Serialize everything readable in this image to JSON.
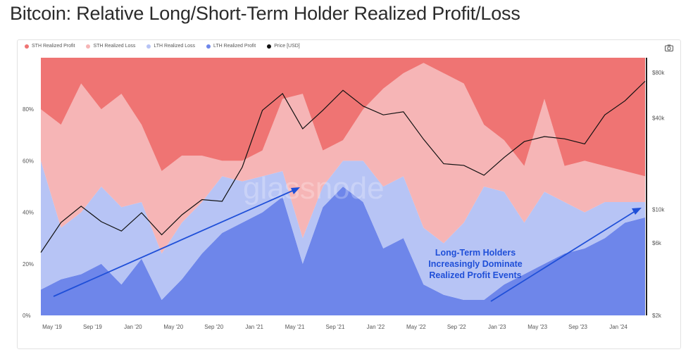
{
  "page": {
    "title": "Bitcoin: Relative Long/Short-Term Holder Realized Profit/Loss",
    "watermark": "glassnode"
  },
  "legend": [
    {
      "label": "STH Realized Profit",
      "color": "#ef7473"
    },
    {
      "label": "STH Realized Loss",
      "color": "#f6b5b6"
    },
    {
      "label": "LTH Realized Loss",
      "color": "#b7c4f5"
    },
    {
      "label": "LTH Realized Profit",
      "color": "#6e86ea"
    },
    {
      "label": "Price [USD]",
      "color": "#111111"
    }
  ],
  "icons": {
    "camera": "camera-icon"
  },
  "annotation": {
    "lines": [
      "Long-Term Holders",
      "Increasingly Dominate",
      "Realized Profit Events"
    ],
    "color": "#1f4fd8"
  },
  "chart_data": {
    "type": "area",
    "title": "Bitcoin: Relative Long/Short-Term Holder Realized Profit/Loss",
    "x_ticks": [
      "May '19",
      "Sep '19",
      "Jan '20",
      "May '20",
      "Sep '20",
      "Jan '21",
      "May '21",
      "Sep '21",
      "Jan '22",
      "May '22",
      "Sep '22",
      "Jan '23",
      "May '23",
      "Sep '23",
      "Jan '24"
    ],
    "y_left": {
      "ticks": [
        "0%",
        "20%",
        "40%",
        "60%",
        "80%"
      ],
      "range": [
        0,
        100
      ],
      "unit": "%"
    },
    "y_right": {
      "ticks": [
        "$2k",
        "$6k",
        "$10k",
        "$40k",
        "$80k"
      ],
      "scale": "log",
      "range": [
        2000,
        100000
      ]
    },
    "x": [
      "2019-04",
      "2019-06",
      "2019-08",
      "2019-10",
      "2019-12",
      "2020-02",
      "2020-04",
      "2020-06",
      "2020-08",
      "2020-10",
      "2020-12",
      "2021-02",
      "2021-04",
      "2021-06",
      "2021-08",
      "2021-10",
      "2021-12",
      "2022-02",
      "2022-04",
      "2022-06",
      "2022-08",
      "2022-10",
      "2022-12",
      "2023-02",
      "2023-04",
      "2023-06",
      "2023-08",
      "2023-10",
      "2023-12",
      "2024-02",
      "2024-03"
    ],
    "series": [
      {
        "name": "LTH Realized Profit",
        "color": "#6e86ea",
        "values": [
          10,
          14,
          16,
          20,
          12,
          22,
          6,
          14,
          24,
          32,
          36,
          40,
          46,
          20,
          42,
          50,
          44,
          26,
          30,
          12,
          8,
          6,
          6,
          12,
          16,
          20,
          24,
          26,
          30,
          36,
          38
        ]
      },
      {
        "name": "LTH Realized Loss",
        "color": "#b7c4f5",
        "values": [
          50,
          20,
          24,
          30,
          30,
          22,
          18,
          22,
          20,
          22,
          16,
          14,
          10,
          10,
          8,
          10,
          16,
          24,
          24,
          22,
          20,
          30,
          44,
          36,
          20,
          28,
          20,
          14,
          14,
          8,
          6
        ]
      },
      {
        "name": "STH Realized Loss",
        "color": "#f6b5b6",
        "values": [
          20,
          40,
          50,
          30,
          44,
          30,
          32,
          26,
          18,
          6,
          8,
          10,
          28,
          56,
          14,
          8,
          20,
          38,
          40,
          64,
          66,
          54,
          24,
          20,
          22,
          36,
          14,
          20,
          14,
          12,
          10
        ]
      },
      {
        "name": "STH Realized Profit",
        "color": "#ef7473",
        "values": [
          20,
          26,
          10,
          20,
          14,
          26,
          44,
          38,
          38,
          40,
          40,
          36,
          16,
          14,
          36,
          32,
          20,
          12,
          6,
          2,
          6,
          10,
          26,
          32,
          42,
          16,
          42,
          40,
          42,
          44,
          46
        ]
      }
    ],
    "price_series": {
      "name": "Price [USD]",
      "color": "#111111",
      "values": [
        5200,
        8200,
        10500,
        8300,
        7200,
        9500,
        6800,
        9200,
        11600,
        11300,
        19000,
        45000,
        58000,
        34000,
        45000,
        61000,
        48000,
        42000,
        44000,
        29000,
        20000,
        19500,
        16800,
        22000,
        28000,
        30200,
        29200,
        27000,
        42000,
        52000,
        70000
      ]
    }
  }
}
